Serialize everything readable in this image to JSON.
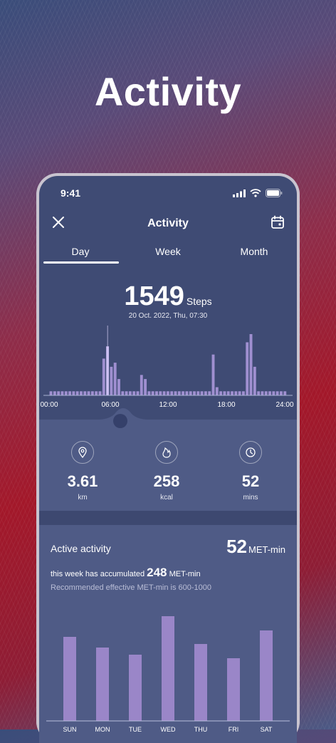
{
  "headline": "Activity",
  "status_bar": {
    "time": "9:41"
  },
  "header": {
    "title": "Activity"
  },
  "tabs": [
    {
      "label": "Day",
      "active": true
    },
    {
      "label": "Week",
      "active": false
    },
    {
      "label": "Month",
      "active": false
    }
  ],
  "steps": {
    "value": "1549",
    "unit": "Steps",
    "datetime": "20 Oct. 2022, Thu, 07:30"
  },
  "chart_data": [
    {
      "type": "bar",
      "x_tick_labels": [
        "00:00",
        "06:00",
        "12:00",
        "18:00",
        "24:00"
      ],
      "values": [
        1,
        1,
        1,
        1,
        1,
        1,
        1,
        1,
        1,
        1,
        1,
        1,
        1,
        1,
        9,
        12,
        7,
        8,
        4,
        1,
        1,
        1,
        1,
        1,
        5,
        4,
        1,
        1,
        1,
        1,
        1,
        1,
        1,
        1,
        1,
        1,
        1,
        1,
        1,
        1,
        1,
        1,
        1,
        10,
        2,
        1,
        1,
        1,
        1,
        1,
        1,
        1,
        13,
        15,
        7,
        1,
        1,
        1,
        1,
        1,
        1,
        1,
        1
      ],
      "highlight_index": 15,
      "colors": {
        "bar": "#9f8fd0",
        "highlight": "#c5b8ee"
      }
    },
    {
      "type": "bar",
      "categories": [
        "SUN",
        "MON",
        "TUE",
        "WED",
        "THU",
        "FRI",
        "SAT"
      ],
      "values": [
        118,
        103,
        93,
        147,
        108,
        88,
        127
      ],
      "colors": {
        "bar": "#9a86c8"
      }
    }
  ],
  "metrics": [
    {
      "icon": "location-icon",
      "value": "3.61",
      "unit": "km"
    },
    {
      "icon": "flame-icon",
      "value": "258",
      "unit": "kcal"
    },
    {
      "icon": "clock-icon",
      "value": "52",
      "unit": "mins"
    }
  ],
  "active_activity": {
    "title": "Active activity",
    "value": "52",
    "unit": "MET-min",
    "sub_prefix": "this week has accumulated",
    "sub_value": "248",
    "sub_unit": "MET-min",
    "recommendation": "Recommended effective MET-min is 600-1000"
  }
}
